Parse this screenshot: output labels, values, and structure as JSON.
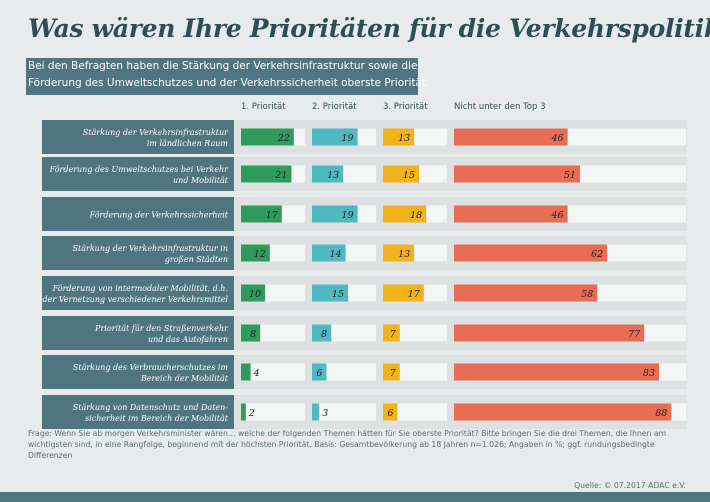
{
  "title": "Was wären Ihre Prioritäten für die Verkehrspolitik?",
  "subtitle": [
    "Bei den Befragten haben die Stärkung der Verkehrsinfrastruktur sowie die",
    "Förderung des Umweltschutzes und der Verkehrssicherheit oberste Priorität."
  ],
  "footnote": "Frage: Wenn Sie ab morgen Verkehrsminister wären… welche der folgenden Themen hätten für Sie oberste Priorität? Bitte bringen Sie die drei Themen, die Ihnen am wichtigsten sind, in eine Rangfolge, beginnend mit der höchsten Priorität. Basis: Gesamtbevölkerung ab 18 Jahren n=1.026; Angaben in %; ggf. rundungsbedingte Differenzen",
  "source": "Quelle: © 07.2017 ADAC e.V.",
  "colors": {
    "category_bg": "#4e7580",
    "series": [
      "#2e9a5c",
      "#4fb8c0",
      "#f2b21c",
      "#e86d55"
    ]
  },
  "chart_data": {
    "type": "bar",
    "categories": [
      [
        "Stärkung der Verkehrsinfrastruktur",
        "im ländlichen Raum"
      ],
      [
        "Förderung des Umweltschutzes bei Verkehr",
        "und Mobilität"
      ],
      [
        "Förderung der Verkehrssicherheit"
      ],
      [
        "Stärkung der Verkehrsinfrastruktur in",
        "großen Städten"
      ],
      [
        "Förderung von intermodaler Mobilität, d.h.",
        "der Vernetzung verschiedener Verkehrsmittel"
      ],
      [
        "Priorität für den Straßenverkehr",
        "und das Autofahren"
      ],
      [
        "Stärkung des Verbraucherschutzes im",
        "Bereich der Mobilität"
      ],
      [
        "Stärkung von Datenschutz und Daten-",
        "sicherheit im Bereich der Mobilität"
      ]
    ],
    "series": [
      {
        "name": "1. Priorität",
        "values": [
          22,
          21,
          17,
          12,
          10,
          8,
          4,
          2
        ]
      },
      {
        "name": "2. Priorität",
        "values": [
          19,
          13,
          19,
          14,
          15,
          8,
          6,
          3
        ]
      },
      {
        "name": "3. Priorität",
        "values": [
          13,
          15,
          18,
          13,
          17,
          7,
          7,
          6
        ]
      },
      {
        "name": "Nicht unter den Top 3",
        "values": [
          46,
          51,
          46,
          62,
          58,
          77,
          83,
          88
        ]
      }
    ]
  }
}
